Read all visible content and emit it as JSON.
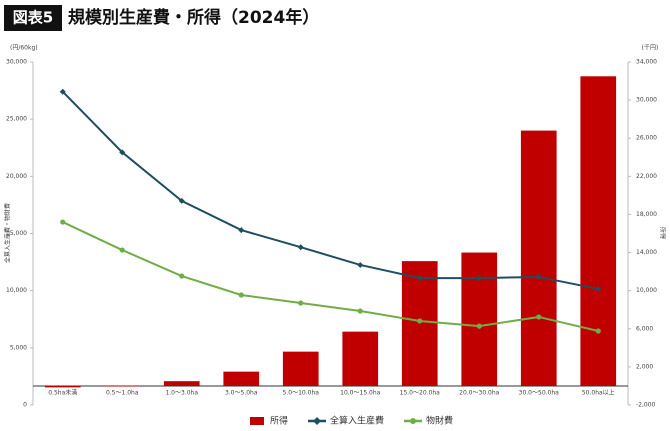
{
  "chart_data": {
    "type": "bar_line",
    "title_badge": "図表5",
    "title": "規模別生産費・所得（2024年）",
    "y_unit": "(円/60kg)",
    "y2_unit": "(千円)",
    "ylabel": "全算入生産費・物財費",
    "y2label": "所得",
    "categories": [
      "0.5ha未満",
      "0.5〜1.0ha",
      "1.0〜3.0ha",
      "3.0〜5.0ha",
      "5.0〜10.0ha",
      "10.0〜15.0ha",
      "15.0〜20.0ha",
      "20.0〜30.0ha",
      "30.0〜50.0ha",
      "50.0ha以上"
    ],
    "series": [
      {
        "name": "所得",
        "type": "bar",
        "axis": "y2",
        "color": "#c00000",
        "values": [
          -150,
          -30,
          500,
          1500,
          3600,
          5700,
          13100,
          14000,
          26800,
          32500
        ]
      },
      {
        "name": "全算入生産費",
        "type": "line",
        "marker": "diamond",
        "color": "#1f4e5f",
        "values": [
          27400,
          22100,
          17850,
          15300,
          13800,
          12250,
          11100,
          11100,
          11200,
          10150
        ]
      },
      {
        "name": "物財費",
        "type": "line",
        "marker": "circle",
        "color": "#70ad47",
        "values": [
          16000,
          13550,
          11280,
          9620,
          8920,
          8220,
          7350,
          6900,
          7700,
          6470
        ]
      }
    ],
    "ylim": [
      0,
      30000
    ],
    "yticks": [
      0,
      {
        "value": 5000,
        "label": "5,000"
      },
      {
        "value": 10000,
        "label": "10,000"
      },
      {
        "value": 15000,
        "label": "15,000"
      },
      {
        "value": 20000,
        "label": "20,000"
      },
      {
        "value": 25000,
        "label": "25,000"
      },
      {
        "value": 30000,
        "label": "30,000"
      }
    ],
    "y2lim": [
      -2000,
      34000
    ],
    "y2ticks": [
      {
        "value": -2000,
        "label": "-2,000"
      },
      {
        "value": 2000,
        "label": "2,000"
      },
      {
        "value": 6000,
        "label": "6,000"
      },
      {
        "value": 10000,
        "label": "10,000"
      },
      {
        "value": 14000,
        "label": "14,000"
      },
      {
        "value": 18000,
        "label": "18,000"
      },
      {
        "value": 22000,
        "label": "22,000"
      },
      {
        "value": 26000,
        "label": "26,000"
      },
      {
        "value": 30000,
        "label": "30,000"
      },
      {
        "value": 34000,
        "label": "34,000"
      }
    ],
    "legend": "bottom"
  }
}
